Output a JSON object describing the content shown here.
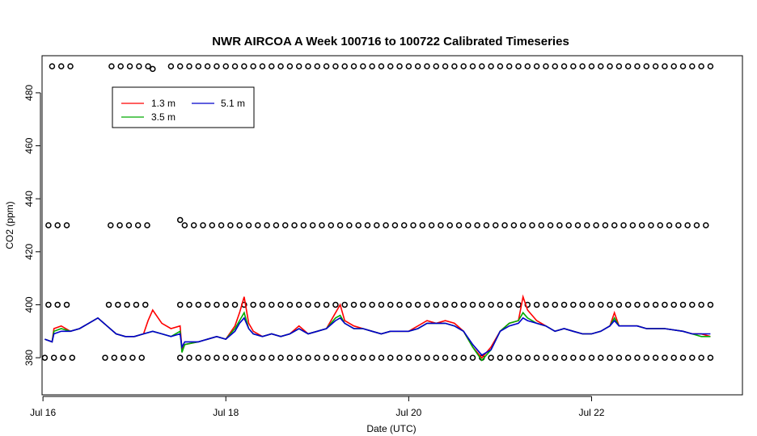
{
  "chart_data": {
    "type": "line",
    "title": "NWR AIRCOA A  Week 100716 to 100722  Calibrated Timeseries",
    "xlabel": "Date (UTC)",
    "ylabel": "CO2 (ppm)",
    "xlim": [
      15.99,
      23.65
    ],
    "ylim": [
      366,
      494
    ],
    "x_ticks": [
      16,
      18,
      20,
      22
    ],
    "x_tick_labels": [
      "Jul 16",
      "Jul 18",
      "Jul 20",
      "Jul 22"
    ],
    "y_ticks": [
      380,
      400,
      420,
      440,
      460,
      480
    ],
    "grid": false,
    "legend_position": "top-left",
    "series": [
      {
        "name": "1.3 m",
        "color": "#ff0000",
        "points": [
          [
            16.02,
            387
          ],
          [
            16.1,
            386
          ],
          [
            16.12,
            391
          ],
          [
            16.2,
            392
          ],
          [
            16.3,
            390
          ],
          [
            16.4,
            391
          ],
          [
            16.5,
            393
          ],
          [
            16.6,
            395
          ],
          [
            16.7,
            392
          ],
          [
            16.8,
            389
          ],
          [
            16.9,
            388
          ],
          [
            17.0,
            388
          ],
          [
            17.1,
            389
          ],
          [
            17.15,
            394
          ],
          [
            17.2,
            398
          ],
          [
            17.3,
            393
          ],
          [
            17.4,
            391
          ],
          [
            17.5,
            392
          ],
          [
            17.52,
            383
          ],
          [
            17.55,
            385
          ],
          [
            17.7,
            386
          ],
          [
            17.9,
            388
          ],
          [
            18.0,
            387
          ],
          [
            18.1,
            392
          ],
          [
            18.15,
            397
          ],
          [
            18.2,
            403
          ],
          [
            18.25,
            393
          ],
          [
            18.3,
            390
          ],
          [
            18.4,
            388
          ],
          [
            18.5,
            389
          ],
          [
            18.6,
            388
          ],
          [
            18.7,
            389
          ],
          [
            18.8,
            392
          ],
          [
            18.9,
            389
          ],
          [
            19.0,
            390
          ],
          [
            19.1,
            391
          ],
          [
            19.2,
            397
          ],
          [
            19.25,
            400
          ],
          [
            19.3,
            394
          ],
          [
            19.4,
            392
          ],
          [
            19.5,
            391
          ],
          [
            19.6,
            390
          ],
          [
            19.7,
            389
          ],
          [
            19.8,
            390
          ],
          [
            20.0,
            390
          ],
          [
            20.1,
            392
          ],
          [
            20.2,
            394
          ],
          [
            20.3,
            393
          ],
          [
            20.4,
            394
          ],
          [
            20.5,
            393
          ],
          [
            20.6,
            390
          ],
          [
            20.7,
            384
          ],
          [
            20.8,
            380
          ],
          [
            20.9,
            384
          ],
          [
            21.0,
            390
          ],
          [
            21.1,
            393
          ],
          [
            21.2,
            394
          ],
          [
            21.25,
            403
          ],
          [
            21.3,
            398
          ],
          [
            21.4,
            394
          ],
          [
            21.5,
            392
          ],
          [
            21.6,
            390
          ],
          [
            21.7,
            391
          ],
          [
            21.8,
            390
          ],
          [
            21.9,
            389
          ],
          [
            22.0,
            389
          ],
          [
            22.1,
            390
          ],
          [
            22.2,
            392
          ],
          [
            22.25,
            397
          ],
          [
            22.3,
            392
          ],
          [
            22.5,
            392
          ],
          [
            22.6,
            391
          ],
          [
            22.8,
            391
          ],
          [
            23.0,
            390
          ],
          [
            23.1,
            389
          ],
          [
            23.2,
            389
          ],
          [
            23.3,
            388
          ]
        ]
      },
      {
        "name": "3.5 m",
        "color": "#00aa00",
        "points": [
          [
            16.02,
            387
          ],
          [
            16.1,
            386
          ],
          [
            16.12,
            390
          ],
          [
            16.2,
            391
          ],
          [
            16.3,
            390
          ],
          [
            16.4,
            391
          ],
          [
            16.5,
            393
          ],
          [
            16.6,
            395
          ],
          [
            16.7,
            392
          ],
          [
            16.8,
            389
          ],
          [
            16.9,
            388
          ],
          [
            17.0,
            388
          ],
          [
            17.1,
            389
          ],
          [
            17.2,
            390
          ],
          [
            17.3,
            389
          ],
          [
            17.4,
            388
          ],
          [
            17.5,
            390
          ],
          [
            17.52,
            382
          ],
          [
            17.55,
            385
          ],
          [
            17.7,
            386
          ],
          [
            17.9,
            388
          ],
          [
            18.0,
            387
          ],
          [
            18.1,
            391
          ],
          [
            18.15,
            394
          ],
          [
            18.2,
            397
          ],
          [
            18.25,
            391
          ],
          [
            18.3,
            389
          ],
          [
            18.4,
            388
          ],
          [
            18.5,
            389
          ],
          [
            18.6,
            388
          ],
          [
            18.7,
            389
          ],
          [
            18.8,
            391
          ],
          [
            18.9,
            389
          ],
          [
            19.0,
            390
          ],
          [
            19.1,
            391
          ],
          [
            19.2,
            395
          ],
          [
            19.25,
            396
          ],
          [
            19.3,
            393
          ],
          [
            19.4,
            391
          ],
          [
            19.5,
            391
          ],
          [
            19.6,
            390
          ],
          [
            19.7,
            389
          ],
          [
            19.8,
            390
          ],
          [
            20.0,
            390
          ],
          [
            20.1,
            391
          ],
          [
            20.2,
            393
          ],
          [
            20.3,
            393
          ],
          [
            20.4,
            393
          ],
          [
            20.5,
            392
          ],
          [
            20.6,
            390
          ],
          [
            20.7,
            384
          ],
          [
            20.8,
            379
          ],
          [
            20.9,
            383
          ],
          [
            21.0,
            390
          ],
          [
            21.1,
            393
          ],
          [
            21.2,
            394
          ],
          [
            21.25,
            397
          ],
          [
            21.3,
            395
          ],
          [
            21.4,
            393
          ],
          [
            21.5,
            392
          ],
          [
            21.6,
            390
          ],
          [
            21.7,
            391
          ],
          [
            21.8,
            390
          ],
          [
            21.9,
            389
          ],
          [
            22.0,
            389
          ],
          [
            22.1,
            390
          ],
          [
            22.2,
            392
          ],
          [
            22.25,
            395
          ],
          [
            22.3,
            392
          ],
          [
            22.5,
            392
          ],
          [
            22.6,
            391
          ],
          [
            22.8,
            391
          ],
          [
            23.0,
            390
          ],
          [
            23.1,
            389
          ],
          [
            23.2,
            388
          ],
          [
            23.3,
            388
          ]
        ]
      },
      {
        "name": "5.1 m",
        "color": "#0000cc",
        "points": [
          [
            16.02,
            387
          ],
          [
            16.1,
            386
          ],
          [
            16.12,
            389
          ],
          [
            16.2,
            390
          ],
          [
            16.3,
            390
          ],
          [
            16.4,
            391
          ],
          [
            16.5,
            393
          ],
          [
            16.6,
            395
          ],
          [
            16.7,
            392
          ],
          [
            16.8,
            389
          ],
          [
            16.9,
            388
          ],
          [
            17.0,
            388
          ],
          [
            17.1,
            389
          ],
          [
            17.2,
            390
          ],
          [
            17.3,
            389
          ],
          [
            17.4,
            388
          ],
          [
            17.5,
            389
          ],
          [
            17.52,
            384
          ],
          [
            17.55,
            386
          ],
          [
            17.7,
            386
          ],
          [
            17.9,
            388
          ],
          [
            18.0,
            387
          ],
          [
            18.1,
            390
          ],
          [
            18.15,
            393
          ],
          [
            18.2,
            395
          ],
          [
            18.25,
            391
          ],
          [
            18.3,
            389
          ],
          [
            18.4,
            388
          ],
          [
            18.5,
            389
          ],
          [
            18.6,
            388
          ],
          [
            18.7,
            389
          ],
          [
            18.8,
            391
          ],
          [
            18.9,
            389
          ],
          [
            19.0,
            390
          ],
          [
            19.1,
            391
          ],
          [
            19.2,
            394
          ],
          [
            19.25,
            395
          ],
          [
            19.3,
            393
          ],
          [
            19.4,
            391
          ],
          [
            19.5,
            391
          ],
          [
            19.6,
            390
          ],
          [
            19.7,
            389
          ],
          [
            19.8,
            390
          ],
          [
            20.0,
            390
          ],
          [
            20.1,
            391
          ],
          [
            20.2,
            393
          ],
          [
            20.3,
            393
          ],
          [
            20.4,
            393
          ],
          [
            20.5,
            392
          ],
          [
            20.6,
            390
          ],
          [
            20.7,
            385
          ],
          [
            20.8,
            381
          ],
          [
            20.9,
            383
          ],
          [
            21.0,
            390
          ],
          [
            21.1,
            392
          ],
          [
            21.2,
            393
          ],
          [
            21.25,
            395
          ],
          [
            21.3,
            394
          ],
          [
            21.4,
            393
          ],
          [
            21.5,
            392
          ],
          [
            21.6,
            390
          ],
          [
            21.7,
            391
          ],
          [
            21.8,
            390
          ],
          [
            21.9,
            389
          ],
          [
            22.0,
            389
          ],
          [
            22.1,
            390
          ],
          [
            22.2,
            392
          ],
          [
            22.25,
            394
          ],
          [
            22.3,
            392
          ],
          [
            22.5,
            392
          ],
          [
            22.6,
            391
          ],
          [
            22.8,
            391
          ],
          [
            23.0,
            390
          ],
          [
            23.1,
            389
          ],
          [
            23.2,
            389
          ],
          [
            23.3,
            389
          ]
        ]
      }
    ],
    "marker_series": [
      {
        "y": 490,
        "x_runs": [
          [
            16.1,
            16.35
          ],
          [
            16.75,
            17.15
          ],
          [
            17.4,
            23.3
          ]
        ],
        "extra": [
          [
            17.2,
            489
          ]
        ]
      },
      {
        "y": 430,
        "x_runs": [
          [
            16.06,
            16.35
          ],
          [
            16.74,
            17.15
          ],
          [
            17.55,
            23.3
          ]
        ],
        "extra": [
          [
            17.5,
            432
          ]
        ]
      },
      {
        "y": 400,
        "x_runs": [
          [
            16.06,
            16.35
          ],
          [
            16.72,
            17.15
          ],
          [
            17.5,
            23.3
          ]
        ],
        "extra": []
      },
      {
        "y": 380,
        "x_runs": [
          [
            16.02,
            16.35
          ],
          [
            16.68,
            17.15
          ],
          [
            17.5,
            23.3
          ]
        ],
        "extra": []
      }
    ],
    "marker_spacing": 0.1
  }
}
